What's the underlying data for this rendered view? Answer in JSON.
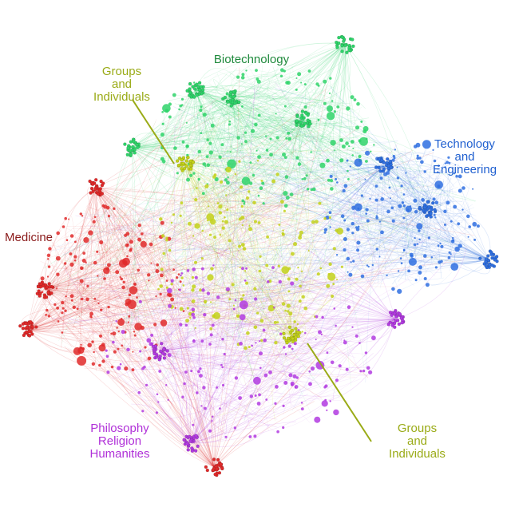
{
  "labels": {
    "biotechnology": "Biotechnology",
    "technology_engineering": "Technology\nand\nEngineering",
    "medicine": "Medicine",
    "groups_top": "Groups\nand\nIndividuals",
    "groups_bottom": "Groups\nand\nIndividuals",
    "philosophy": "Philosophy\nReligion\nHumanities"
  },
  "colors": {
    "biotechnology": "#2fd46a",
    "technology_engineering": "#2f6fe0",
    "medicine": "#e02a2a",
    "groups": "#c3d11a",
    "philosophy": "#b23be0",
    "groups_label": "#9aab17",
    "medicine_label": "#8a1a1a",
    "biotech_label": "#1f8a3c",
    "tech_label": "#2060d0",
    "philosophy_label": "#b030d8"
  },
  "icons": {
    "network": "network-graph-icon"
  }
}
